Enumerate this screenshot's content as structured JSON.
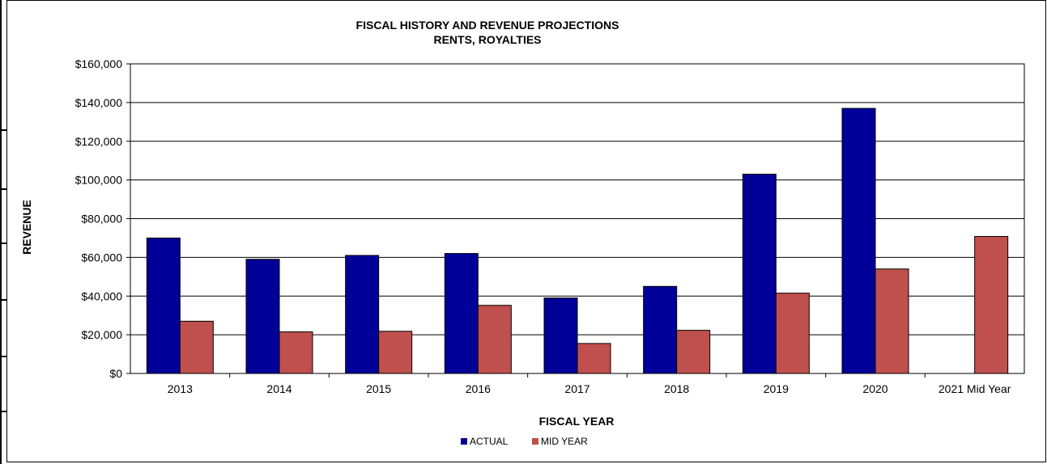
{
  "chart_data": {
    "type": "bar",
    "title": "FISCAL HISTORY AND REVENUE PROJECTIONS",
    "subtitle": "RENTS, ROYALTIES",
    "xlabel": "FISCAL YEAR",
    "ylabel": "REVENUE",
    "ylim": [
      0,
      160000
    ],
    "yticks": [
      0,
      20000,
      40000,
      60000,
      80000,
      100000,
      120000,
      140000,
      160000
    ],
    "ytick_labels": [
      "$0",
      "$20,000",
      "$40,000",
      "$60,000",
      "$80,000",
      "$100,000",
      "$120,000",
      "$140,000",
      "$160,000"
    ],
    "categories": [
      "2013",
      "2014",
      "2015",
      "2016",
      "2017",
      "2018",
      "2019",
      "2020",
      "2021 Mid Year"
    ],
    "series": [
      {
        "name": "ACTUAL",
        "color": "#000099",
        "values": [
          70000,
          59000,
          61000,
          62000,
          39000,
          45000,
          103000,
          137000,
          null
        ]
      },
      {
        "name": "MID YEAR",
        "color": "#C0504D",
        "values": [
          27000,
          21500,
          21800,
          35200,
          15500,
          22300,
          41500,
          54000,
          70800
        ]
      }
    ],
    "grid": true,
    "legend_position": "bottom-center"
  }
}
